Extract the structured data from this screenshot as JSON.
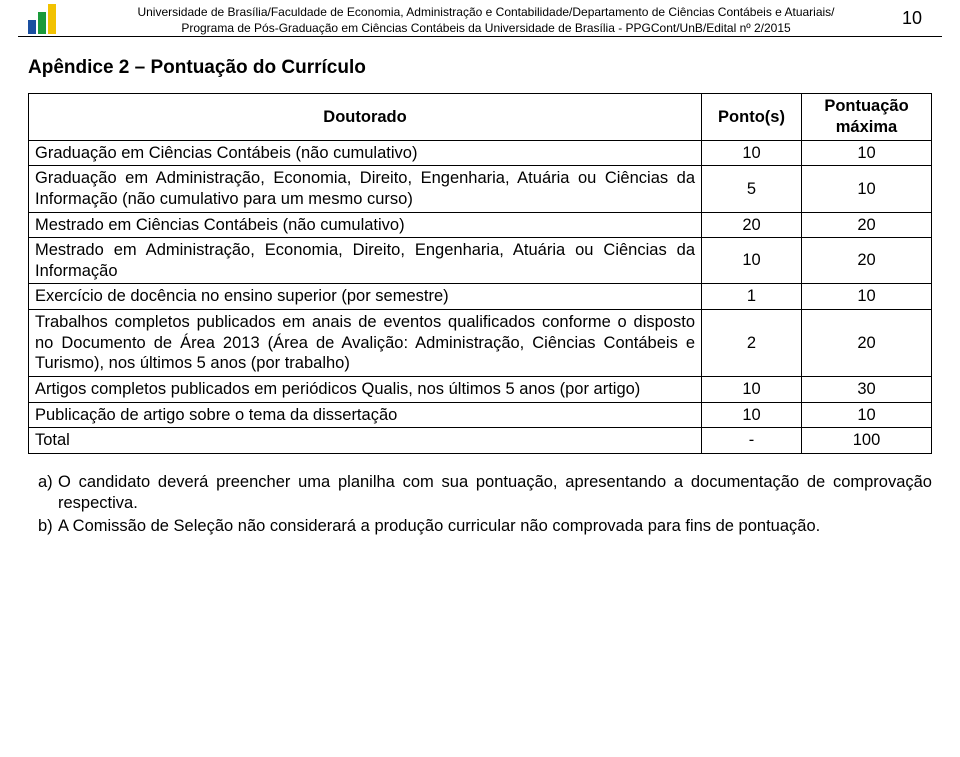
{
  "header": {
    "line1": "Universidade de Brasília/Faculdade de Economia, Administração e Contabilidade/Departamento de Ciências Contábeis e Atuariais/",
    "line2": "Programa de Pós-Graduação em Ciências Contábeis da Universidade de Brasília - PPGCont/UnB/Edital nº 2/2015",
    "page_number": "10",
    "logo_colors": {
      "bar1": "#1a4fa0",
      "bar2": "#1a9a3a",
      "bar3": "#f2c200"
    }
  },
  "title": "Apêndice 2 – Pontuação do Currículo",
  "table": {
    "columns": {
      "c1": "Doutorado",
      "c2": "Ponto(s)",
      "c3": "Pontuação máxima"
    },
    "rows": [
      {
        "desc": "Graduação em Ciências Contábeis (não cumulativo)",
        "pts": "10",
        "max": "10"
      },
      {
        "desc": "Graduação em Administração, Economia, Direito, Engenharia, Atuária ou Ciências da Informação (não cumulativo para um mesmo curso)",
        "pts": "5",
        "max": "10"
      },
      {
        "desc": "Mestrado em Ciências Contábeis (não cumulativo)",
        "pts": "20",
        "max": "20"
      },
      {
        "desc": "Mestrado em Administração, Economia, Direito, Engenharia, Atuária ou Ciências da Informação",
        "pts": "10",
        "max": "20"
      },
      {
        "desc": "Exercício de docência no ensino superior (por semestre)",
        "pts": "1",
        "max": "10"
      },
      {
        "desc": "Trabalhos completos publicados em anais de eventos qualificados conforme o disposto no Documento de Área 2013 (Área de Avalição: Administração, Ciências Contábeis e Turismo), nos últimos 5 anos (por trabalho)",
        "pts": "2",
        "max": "20"
      },
      {
        "desc": "Artigos completos publicados em periódicos Qualis, nos últimos 5 anos (por artigo)",
        "pts": "10",
        "max": "30"
      },
      {
        "desc": "Publicação de artigo sobre o tema da dissertação",
        "pts": "10",
        "max": "10"
      },
      {
        "desc": "Total",
        "pts": "-",
        "max": "100"
      }
    ]
  },
  "notes": {
    "a": {
      "marker": "a)",
      "text": "O candidato deverá preencher uma planilha com sua pontuação, apresentando a documentação de comprovação respectiva."
    },
    "b": {
      "marker": "b)",
      "text": "A Comissão de Seleção não considerará a produção curricular não comprovada para fins de pontuação."
    }
  },
  "style": {
    "text_color": "#000000",
    "background": "#ffffff",
    "border_color": "#000000",
    "body_font": "Comic Sans MS",
    "title_fontsize": 19,
    "table_fontsize": 16.5,
    "header_fontsize": 12
  }
}
